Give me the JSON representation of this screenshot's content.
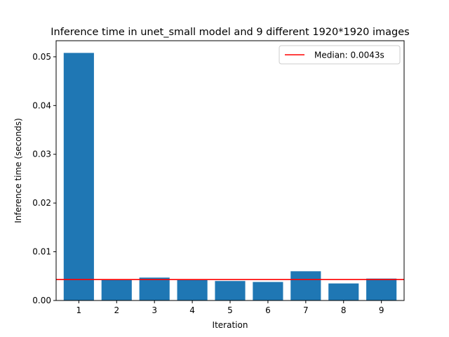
{
  "chart_data": {
    "type": "bar",
    "title": "Inference time in unet_small model and 9 different 1920*1920 images",
    "xlabel": "Iteration",
    "ylabel": "Inference time (seconds)",
    "categories": [
      "1",
      "2",
      "3",
      "4",
      "5",
      "6",
      "7",
      "8",
      "9"
    ],
    "values": [
      0.0508,
      0.0043,
      0.0047,
      0.0043,
      0.004,
      0.0038,
      0.006,
      0.0035,
      0.0045
    ],
    "ylim": [
      0,
      0.0533
    ],
    "yticks": [
      0.0,
      0.01,
      0.02,
      0.03,
      0.04,
      0.05
    ],
    "ytick_labels": [
      "0.00",
      "0.01",
      "0.02",
      "0.03",
      "0.04",
      "0.05"
    ],
    "bar_color": "#1f77b4",
    "reference_line": {
      "value": 0.0043,
      "label": "Median: 0.0043s",
      "color": "#ff0000"
    },
    "legend": {
      "position": "top-right",
      "entries": [
        "Median: 0.0043s"
      ]
    },
    "grid": false
  }
}
